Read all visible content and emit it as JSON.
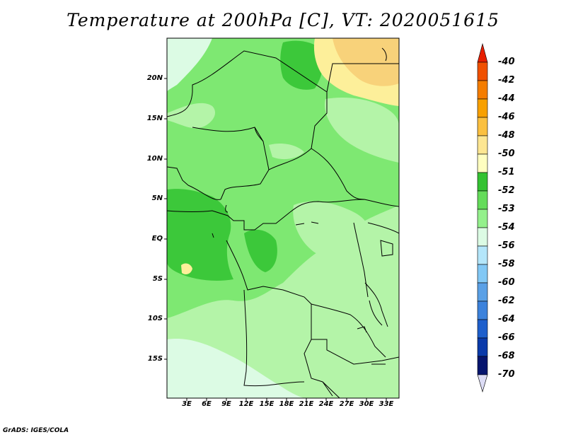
{
  "title": "Temperature at 200hPa [C], VT: 2020051615",
  "map": {
    "lat_labels": [
      "20N",
      "15N",
      "10N",
      "5N",
      "EQ",
      "5S",
      "10S",
      "15S"
    ],
    "lon_labels": [
      "3E",
      "6E",
      "9E",
      "12E",
      "15E",
      "18E",
      "21E",
      "24E",
      "27E",
      "30E",
      "33E"
    ]
  },
  "colorbar": {
    "labels": [
      "-40",
      "-42",
      "-44",
      "-46",
      "-48",
      "-50",
      "-51",
      "-52",
      "-53",
      "-54",
      "-56",
      "-58",
      "-60",
      "-62",
      "-64",
      "-66",
      "-68",
      "-70"
    ],
    "colors": [
      "#e61e00",
      "#f05000",
      "#f57d00",
      "#f8a000",
      "#fbc040",
      "#fde692",
      "#fffec0",
      "#34c232",
      "#64dc5a",
      "#94f08c",
      "#dcfbe4",
      "#b4e6fa",
      "#82c8f5",
      "#5aa0e6",
      "#3c82dc",
      "#1e5fcc",
      "#0a3aaa",
      "#06156e",
      "#dcdcf5"
    ]
  },
  "credit": "GrADS: IGES/COLA",
  "colors": {
    "sea_far": "#dcfbe4",
    "temp_53_54": "#b4f4a8",
    "temp_52_53": "#7ee872",
    "temp_51_52": "#3cc83a",
    "temp_50_51": "#fdef9a",
    "temp_49_50": "#f8d27a",
    "border": "#000000"
  }
}
